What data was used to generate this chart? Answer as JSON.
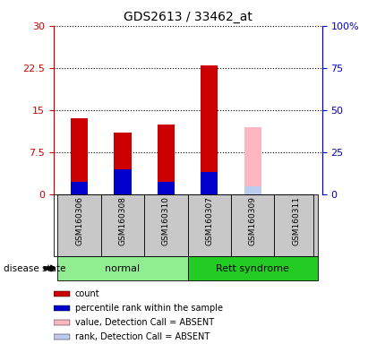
{
  "title": "GDS2613 / 33462_at",
  "samples": [
    "GSM160306",
    "GSM160308",
    "GSM160310",
    "GSM160307",
    "GSM160309",
    "GSM160311"
  ],
  "groups": [
    "normal",
    "normal",
    "normal",
    "Rett syndrome",
    "Rett syndrome",
    "Rett syndrome"
  ],
  "group_colors": {
    "normal": "#90EE90",
    "Rett syndrome": "#22CC22"
  },
  "ylim_left": [
    0,
    30
  ],
  "ylim_right": [
    0,
    100
  ],
  "yticks_left": [
    0,
    7.5,
    15,
    22.5,
    30
  ],
  "yticks_right": [
    0,
    25,
    50,
    75,
    100
  ],
  "ytick_labels_left": [
    "0",
    "7.5",
    "15",
    "22.5",
    "30"
  ],
  "ytick_labels_right": [
    "0",
    "25",
    "50",
    "75",
    "100%"
  ],
  "count_values": [
    13.5,
    11.0,
    12.5,
    23.0,
    0,
    0
  ],
  "percentile_values": [
    2.2,
    4.5,
    2.2,
    4.0,
    0,
    0
  ],
  "absent_value_values": [
    0,
    0,
    0,
    0,
    12.0,
    0
  ],
  "absent_rank_values": [
    0,
    0,
    0,
    0,
    1.5,
    0
  ],
  "bar_width": 0.4,
  "count_color": "#CC0000",
  "percentile_color": "#0000CC",
  "absent_value_color": "#FFB6C1",
  "absent_rank_color": "#BBCCEE",
  "left_axis_color": "#CC0000",
  "right_axis_color": "#0000CC",
  "legend_items": [
    {
      "label": "count",
      "color": "#CC0000"
    },
    {
      "label": "percentile rank within the sample",
      "color": "#0000CC"
    },
    {
      "label": "value, Detection Call = ABSENT",
      "color": "#FFB6C1"
    },
    {
      "label": "rank, Detection Call = ABSENT",
      "color": "#BBCCEE"
    }
  ]
}
